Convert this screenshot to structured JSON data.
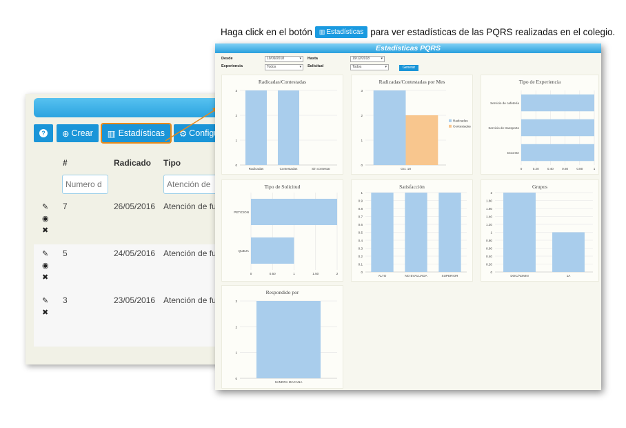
{
  "caption": {
    "before": "Haga click en el botón",
    "button_label": "Estadísticas",
    "after": "para ver estadísticas de las PQRS realizadas en el colegio."
  },
  "background_window": {
    "buttons": {
      "help": "?",
      "create": "Crear",
      "stats": "Estadísticas",
      "config": "Configur"
    },
    "columns": [
      "#",
      "Radicado",
      "Tipo"
    ],
    "filters": {
      "numero": "Numero d",
      "tipo": "Atención de"
    },
    "rows": [
      {
        "num": "7",
        "date": "26/05/2016",
        "type": "Atención de fun"
      },
      {
        "num": "5",
        "date": "24/05/2016",
        "type": "Atención de fun"
      },
      {
        "num": "3",
        "date": "23/05/2016",
        "type": "Atención de fun"
      }
    ]
  },
  "window": {
    "title": "Estadísticas PQRS",
    "form": {
      "desde_label": "Desde",
      "desde_value": "19/09/2018",
      "hasta_label": "Hasta",
      "hasta_value": "19/12/2018",
      "experiencia_label": "Experiencia",
      "experiencia_value": "Todos",
      "solicitud_label": "Solicitud",
      "solicitud_value": "Todos",
      "generar_label": "Generar"
    }
  },
  "chart_data": [
    {
      "id": "radicadas",
      "type": "bar",
      "title": "Radicadas/Contestadas",
      "categories": [
        "Radicadas",
        "Contestadas",
        "Sin contestar"
      ],
      "values": [
        3,
        3,
        0
      ],
      "yticks": [
        "0",
        "1",
        "2",
        "3"
      ],
      "ylim": [
        0,
        3
      ],
      "color": "#a9cdec"
    },
    {
      "id": "por_mes",
      "type": "bar",
      "title": "Radicadas/Contestadas por Mes",
      "categories": [
        "Oct. 18"
      ],
      "series": [
        {
          "name": "Radicadas",
          "values": [
            3
          ],
          "color": "#a9cdec"
        },
        {
          "name": "Contestadas",
          "values": [
            2
          ],
          "color": "#f8c68e"
        }
      ],
      "yticks": [
        "0",
        "1",
        "2",
        "3"
      ],
      "ylim": [
        0,
        3
      ],
      "legend": "right"
    },
    {
      "id": "experiencia",
      "type": "hbar",
      "title": "Tipo de Experiencia",
      "categories": [
        "Servicio de cafetería",
        "Servicio de transporte",
        "Docente"
      ],
      "values": [
        1,
        1,
        1
      ],
      "xticks": [
        "0",
        "0.20",
        "0.40",
        "0.60",
        "0.80",
        "1"
      ],
      "xlim": [
        0,
        1
      ],
      "color": "#a9cdec"
    },
    {
      "id": "solicitud",
      "type": "hbar",
      "title": "Tipo de Solicitud",
      "categories": [
        "PETICION",
        "QUEJA"
      ],
      "values": [
        2,
        1
      ],
      "xticks": [
        "0",
        "0.50",
        "1",
        "1.50",
        "2"
      ],
      "xlim": [
        0,
        2
      ],
      "color": "#a9cdec"
    },
    {
      "id": "satisfaccion",
      "type": "bar",
      "title": "Satisfacción",
      "categories": [
        "ALTO",
        "NO EVALUADA",
        "SUPERIOR"
      ],
      "values": [
        1,
        1,
        1
      ],
      "yticks": [
        "0",
        "0.1",
        "0.2",
        "0.3",
        "0.4",
        "0.5",
        "0.6",
        "0.7",
        "0.8",
        "0.9",
        "1"
      ],
      "ylim": [
        0,
        1
      ],
      "color": "#a9cdec"
    },
    {
      "id": "grupos",
      "type": "bar",
      "title": "Grupos",
      "categories": [
        "DOC/ADMIN",
        "1A"
      ],
      "values": [
        2,
        1
      ],
      "yticks": [
        "0",
        "0.20",
        "0.40",
        "0.60",
        "0.80",
        "1",
        "1.20",
        "1.40",
        "1.60",
        "1.80",
        "2"
      ],
      "ylim": [
        0,
        2
      ],
      "color": "#a9cdec"
    },
    {
      "id": "respondido",
      "type": "bar",
      "title": "Respondido por",
      "categories": [
        "SANDRA MACANA"
      ],
      "values": [
        3
      ],
      "yticks": [
        "0",
        "1",
        "2",
        "3"
      ],
      "ylim": [
        0,
        3
      ],
      "color": "#a9cdec"
    }
  ]
}
